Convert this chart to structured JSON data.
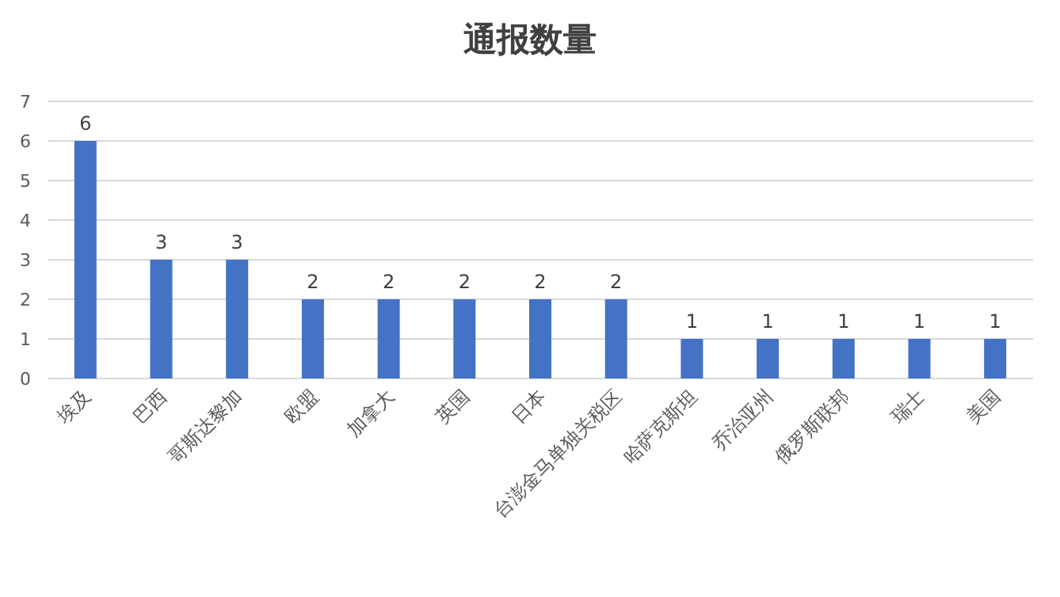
{
  "chart_data": {
    "type": "bar",
    "title": "通报数量",
    "categories": [
      "埃及",
      "巴西",
      "哥斯达黎加",
      "欧盟",
      "加拿大",
      "英国",
      "日本",
      "台澎金马单独关税区",
      "哈萨克斯坦",
      "乔治亚州",
      "俄罗斯联邦",
      "瑞士",
      "美国"
    ],
    "values": [
      6,
      3,
      3,
      2,
      2,
      2,
      2,
      2,
      1,
      1,
      1,
      1,
      1
    ],
    "color": "#4472c4",
    "ylim": [
      0,
      7
    ],
    "yticks": [
      0,
      1,
      2,
      3,
      4,
      5,
      6,
      7
    ],
    "grid": "y",
    "data_labels": true
  }
}
